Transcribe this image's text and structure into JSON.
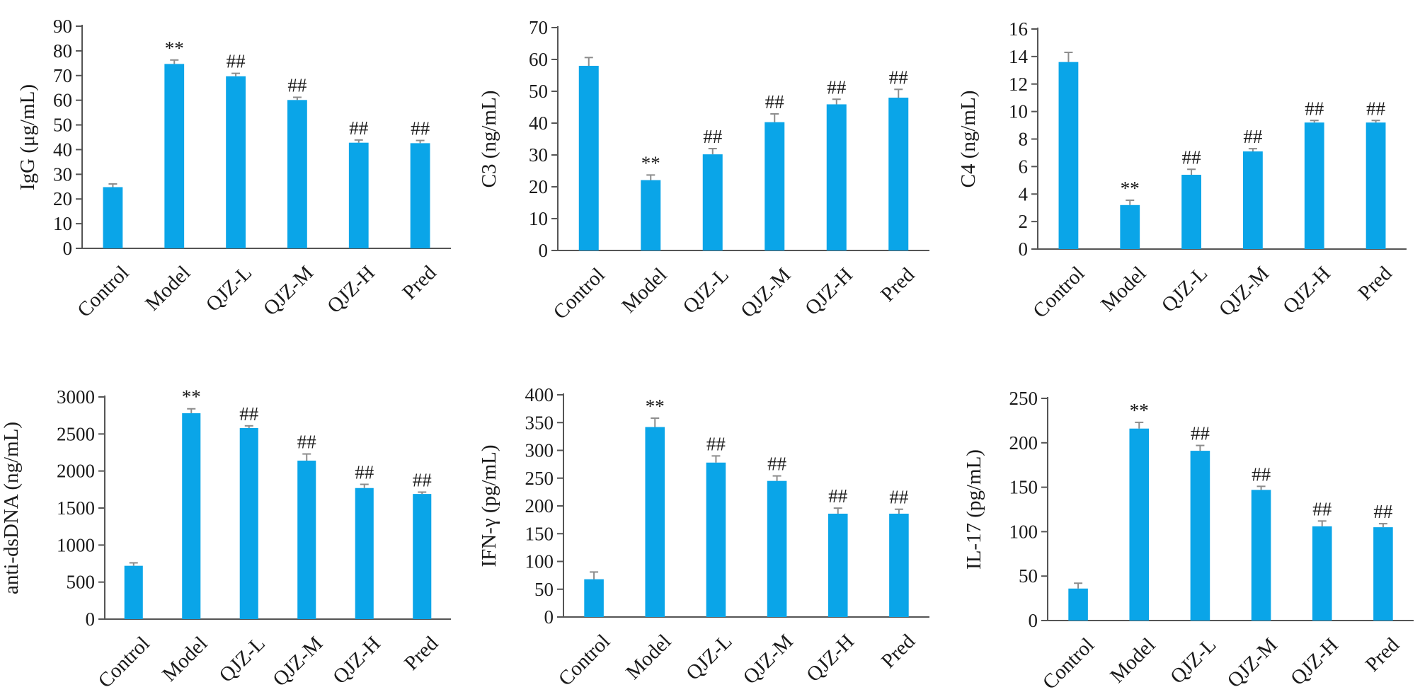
{
  "colors": {
    "bar": "#0aa5e8",
    "axis": "#555555",
    "error": "#8c8c8c",
    "text": "#1a1a1a"
  },
  "chart_data": [
    {
      "type": "bar",
      "ylabel": "IgG (μg/mL)",
      "categories": [
        "Control",
        "Model",
        "QJZ-L",
        "QJZ-M",
        "QJZ-H",
        "Pred"
      ],
      "values": [
        24.8,
        74.7,
        69.7,
        60.1,
        42.8,
        42.6
      ],
      "errors": [
        1.3,
        1.6,
        1.2,
        1.1,
        1.1,
        1.1
      ],
      "significance": [
        "",
        "**",
        "##",
        "##",
        "##",
        "##"
      ],
      "ylim": [
        0,
        90
      ],
      "yticks": [
        0,
        10,
        20,
        30,
        40,
        50,
        60,
        70,
        80,
        90
      ]
    },
    {
      "type": "bar",
      "ylabel": "C3 (ng/mL)",
      "categories": [
        "Control",
        "Model",
        "QJZ-L",
        "QJZ-M",
        "QJZ-H",
        "Pred"
      ],
      "values": [
        58.0,
        22.1,
        30.2,
        40.3,
        45.9,
        48.0
      ],
      "errors": [
        2.6,
        1.6,
        1.8,
        2.6,
        1.6,
        2.6
      ],
      "significance": [
        "",
        "**",
        "##",
        "##",
        "##",
        "##"
      ],
      "ylim": [
        0,
        70
      ],
      "yticks": [
        0,
        10,
        20,
        30,
        40,
        50,
        60,
        70
      ]
    },
    {
      "type": "bar",
      "ylabel": "C4 (ng/mL)",
      "categories": [
        "Control",
        "Model",
        "QJZ-L",
        "QJZ-M",
        "QJZ-H",
        "Pred"
      ],
      "values": [
        13.6,
        3.2,
        5.4,
        7.1,
        9.2,
        9.2
      ],
      "errors": [
        0.7,
        0.35,
        0.4,
        0.2,
        0.15,
        0.15
      ],
      "significance": [
        "",
        "**",
        "##",
        "##",
        "##",
        "##"
      ],
      "ylim": [
        0,
        16
      ],
      "yticks": [
        0,
        2,
        4,
        6,
        8,
        10,
        12,
        14,
        16
      ]
    },
    {
      "type": "bar",
      "ylabel": "anti-dsDNA (ng/mL)",
      "categories": [
        "Control",
        "Model",
        "QJZ-L",
        "QJZ-M",
        "QJZ-H",
        "Pred"
      ],
      "values": [
        720,
        2780,
        2580,
        2140,
        1770,
        1690
      ],
      "errors": [
        40,
        60,
        30,
        90,
        50,
        25
      ],
      "significance": [
        "",
        "**",
        "##",
        "##",
        "##",
        "##"
      ],
      "ylim": [
        0,
        3000
      ],
      "yticks": [
        0,
        500,
        1000,
        1500,
        2000,
        2500,
        3000
      ]
    },
    {
      "type": "bar",
      "ylabel": "IFN-γ (pg/mL)",
      "categories": [
        "Control",
        "Model",
        "QJZ-L",
        "QJZ-M",
        "QJZ-H",
        "Pred"
      ],
      "values": [
        68,
        342,
        278,
        245,
        186,
        186
      ],
      "errors": [
        13,
        16,
        12,
        9,
        10,
        8
      ],
      "significance": [
        "",
        "**",
        "##",
        "##",
        "##",
        "##"
      ],
      "ylim": [
        0,
        400
      ],
      "yticks": [
        0,
        50,
        100,
        150,
        200,
        250,
        300,
        350,
        400
      ]
    },
    {
      "type": "bar",
      "ylabel": "IL-17 (pg/mL)",
      "categories": [
        "Control",
        "Model",
        "QJZ-L",
        "QJZ-M",
        "QJZ-H",
        "Pred"
      ],
      "values": [
        36,
        216,
        191,
        147,
        106,
        105
      ],
      "errors": [
        6,
        7,
        6,
        4,
        6,
        4
      ],
      "significance": [
        "",
        "**",
        "##",
        "##",
        "##",
        "##"
      ],
      "ylim": [
        0,
        250
      ],
      "yticks": [
        0,
        50,
        100,
        150,
        200,
        250
      ]
    }
  ]
}
